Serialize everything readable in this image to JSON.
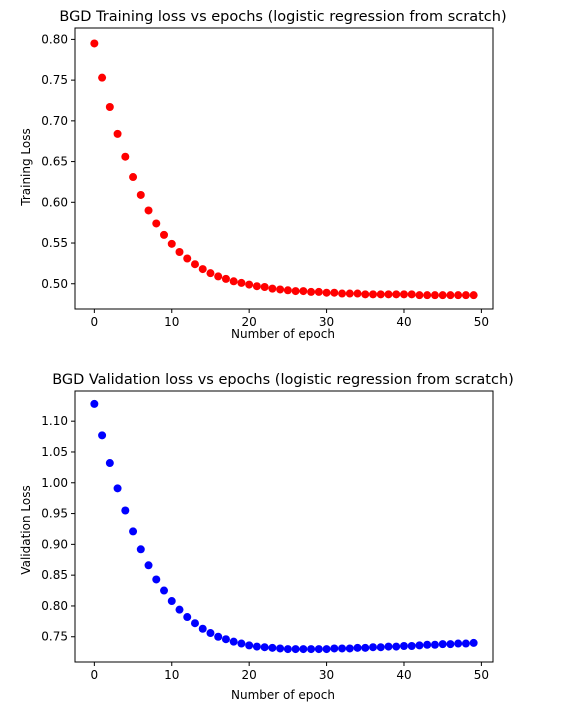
{
  "chart_data": [
    {
      "type": "scatter",
      "title": "BGD Training loss vs epochs (logistic regression from scratch)",
      "xlabel": "Number of epoch",
      "ylabel": "Training Loss",
      "xlim": [
        -2.5,
        51.5
      ],
      "ylim": [
        0.469,
        0.814
      ],
      "xticks": [
        0,
        10,
        20,
        30,
        40,
        50
      ],
      "yticks": [
        0.5,
        0.55,
        0.6,
        0.65,
        0.7,
        0.75,
        0.8
      ],
      "xtick_labels": [
        "0",
        "10",
        "20",
        "30",
        "40",
        "50"
      ],
      "ytick_labels": [
        "0.50",
        "0.55",
        "0.60",
        "0.65",
        "0.70",
        "0.75",
        "0.80"
      ],
      "color": "#ff0000",
      "grid": false,
      "x": [
        0,
        1,
        2,
        3,
        4,
        5,
        6,
        7,
        8,
        9,
        10,
        11,
        12,
        13,
        14,
        15,
        16,
        17,
        18,
        19,
        20,
        21,
        22,
        23,
        24,
        25,
        26,
        27,
        28,
        29,
        30,
        31,
        32,
        33,
        34,
        35,
        36,
        37,
        38,
        39,
        40,
        41,
        42,
        43,
        44,
        45,
        46,
        47,
        48,
        49
      ],
      "y": [
        0.795,
        0.753,
        0.717,
        0.684,
        0.656,
        0.631,
        0.609,
        0.59,
        0.574,
        0.56,
        0.549,
        0.539,
        0.531,
        0.524,
        0.518,
        0.513,
        0.509,
        0.506,
        0.503,
        0.501,
        0.499,
        0.497,
        0.496,
        0.494,
        0.493,
        0.492,
        0.491,
        0.491,
        0.49,
        0.49,
        0.489,
        0.489,
        0.488,
        0.488,
        0.488,
        0.487,
        0.487,
        0.487,
        0.487,
        0.487,
        0.487,
        0.487,
        0.486,
        0.486,
        0.486,
        0.486,
        0.486,
        0.486,
        0.486,
        0.486
      ]
    },
    {
      "type": "scatter",
      "title": "BGD Validation loss vs epochs (logistic regression from scratch)",
      "xlabel": "Number of epoch",
      "ylabel": "Validation Loss",
      "xlim": [
        -2.5,
        51.5
      ],
      "ylim": [
        0.709,
        1.149
      ],
      "xticks": [
        0,
        10,
        20,
        30,
        40,
        50
      ],
      "yticks": [
        0.75,
        0.8,
        0.85,
        0.9,
        0.95,
        1.0,
        1.05,
        1.1
      ],
      "xtick_labels": [
        "0",
        "10",
        "20",
        "30",
        "40",
        "50"
      ],
      "ytick_labels": [
        "0.75",
        "0.80",
        "0.85",
        "0.90",
        "0.95",
        "1.00",
        "1.05",
        "1.10"
      ],
      "color": "#0000ff",
      "grid": false,
      "x": [
        0,
        1,
        2,
        3,
        4,
        5,
        6,
        7,
        8,
        9,
        10,
        11,
        12,
        13,
        14,
        15,
        16,
        17,
        18,
        19,
        20,
        21,
        22,
        23,
        24,
        25,
        26,
        27,
        28,
        29,
        30,
        31,
        32,
        33,
        34,
        35,
        36,
        37,
        38,
        39,
        40,
        41,
        42,
        43,
        44,
        45,
        46,
        47,
        48,
        49
      ],
      "y": [
        1.128,
        1.077,
        1.032,
        0.991,
        0.955,
        0.921,
        0.892,
        0.866,
        0.843,
        0.825,
        0.808,
        0.794,
        0.782,
        0.772,
        0.763,
        0.756,
        0.75,
        0.746,
        0.742,
        0.739,
        0.736,
        0.734,
        0.733,
        0.732,
        0.731,
        0.73,
        0.73,
        0.73,
        0.73,
        0.73,
        0.73,
        0.731,
        0.731,
        0.731,
        0.732,
        0.732,
        0.733,
        0.733,
        0.734,
        0.734,
        0.735,
        0.735,
        0.736,
        0.737,
        0.737,
        0.738,
        0.738,
        0.739,
        0.739,
        0.74
      ]
    }
  ]
}
